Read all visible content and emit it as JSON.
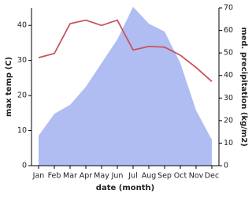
{
  "chart_data": {
    "type": "line",
    "x_label": "date (month)",
    "y_label": "max temp (C)",
    "y2_label": "med. precipitation (kg/m2)",
    "categories": [
      "Jan",
      "Feb",
      "Mar",
      "Apr",
      "May",
      "Jun",
      "Jul",
      "Aug",
      "Sep",
      "Oct",
      "Nov",
      "Dec"
    ],
    "series": [
      {
        "name": "max temp",
        "type": "line",
        "color": "#c8545a",
        "values": [
          30.8,
          32,
          40.5,
          41.5,
          40,
          41.5,
          33,
          34,
          33.8,
          31.5,
          28,
          24
        ]
      },
      {
        "name": "med. precipitation",
        "type": "area",
        "axis": "y2",
        "color": "#b0bdf2",
        "values": [
          13.3,
          23,
          27,
          35,
          45.5,
          56,
          70.5,
          63,
          59.5,
          45.5,
          24.5,
          11.5
        ]
      }
    ],
    "ylim": [
      0,
      45
    ],
    "yticks": [
      0,
      10,
      20,
      30,
      40
    ],
    "y2lim": [
      0,
      70
    ],
    "y2ticks": [
      0,
      10,
      20,
      30,
      40,
      50,
      60,
      70
    ]
  }
}
